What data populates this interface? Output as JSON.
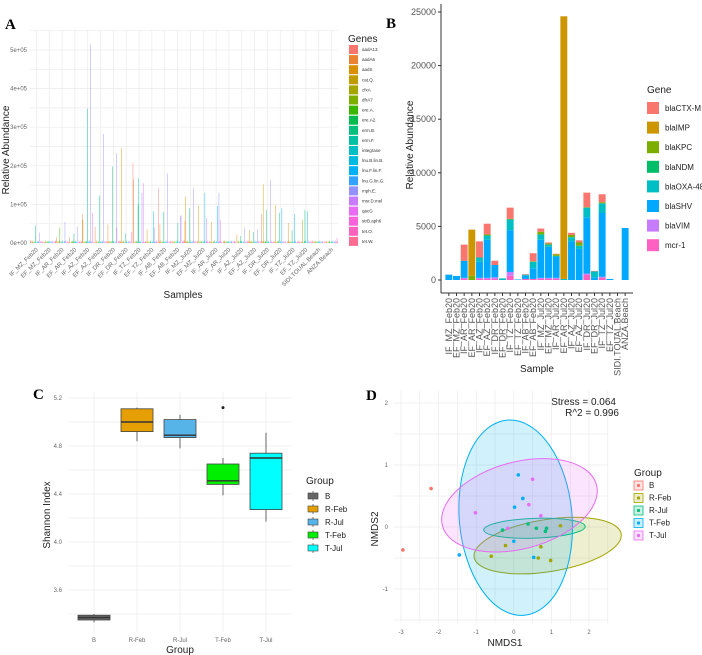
{
  "chart_data": [
    {
      "panel": "A",
      "type": "bar",
      "ylabel": "Relative Abundance",
      "xlabel": "Samples",
      "ylim": [
        0,
        520000
      ],
      "yticks": [
        "0e+00",
        "1e+05",
        "2e+05",
        "3e+05",
        "4e+05",
        "5e+05"
      ],
      "legend_title": "Genes",
      "legend_position": "right",
      "grid": true,
      "genes": [
        "aadA13",
        "aadA6",
        "aadS",
        "cat.Q.",
        "cfxA",
        "dfrA7",
        "ere.A.",
        "ere.A2.",
        "erm.B.",
        "erm.F.",
        "integrase",
        "lnu.B.lin.B.",
        "lnu.F.lin.F.",
        "lnu.G.lin.G.",
        "mph.E.",
        "msr.D.mel",
        "qacG",
        "strB.aph6",
        "tet.O.",
        "tet.W."
      ],
      "colors": [
        "#F8766D",
        "#EA8331",
        "#D89000",
        "#C09B00",
        "#A3A500",
        "#7CAE00",
        "#39B600",
        "#00BB4E",
        "#00BF7D",
        "#00C1A3",
        "#00BFC4",
        "#00BAE0",
        "#00B0F6",
        "#35A2FF",
        "#9590FF",
        "#C77CFF",
        "#E76BF3",
        "#FA62DB",
        "#FF62BC",
        "#FF6C91"
      ],
      "categories": [
        "IF_MZ_Feb20",
        "EF_MZ_Feb20",
        "IF_AR_Feb20",
        "EF_AR_Feb20",
        "IF_AZ_Feb20",
        "EF_AZ_Feb20",
        "IF_DR_Feb20",
        "EF_DR_Feb20",
        "IF_TZ_Feb20",
        "EF_TZ_Feb20",
        "IF_AB_Feb20",
        "EF_AB_Feb20",
        "IF_MZ_Jul20",
        "EF_MZ_Jul20",
        "IF_AR_Jul20",
        "EF_AR_Jul20",
        "IF_AZ_Jul20",
        "EF_AZ_Jul20",
        "IF_DR_Jul20",
        "EF_DR_Jul20",
        "IF_TZ_Jul20",
        "EF_TZ_Jul20",
        "SIDI.TOUAL.Beach",
        "ANZA.Beach"
      ],
      "peak_values_by_sample": [
        {
          "erm.B.": 45000,
          "mph.E.": 27000,
          "aadA13": 8000
        },
        {
          "lnu.F.lin.F.": 5000,
          "aadS": 3000
        },
        {
          "ere.A.": 40000,
          "mph.E.": 55000,
          "aadA6": 15000
        },
        {
          "erm.B.": 25000,
          "mph.E.": 42000,
          "aadA6": 15000
        },
        {
          "aadA6": 75000,
          "erm.F.": 348000,
          "mph.E.": 515000,
          "strB.aph6": 78000,
          "aadS": 60000
        },
        {
          "erm.B.": 123000,
          "mph.E.": 283000,
          "aadA6": 42000
        },
        {
          "erm.B.": 198000,
          "mph.E.": 233000,
          "aadA6": 48000,
          "msr.D.mel": 40000
        },
        {
          "aadS": 245000,
          "erm.B.": 25000,
          "tet.O.": 28000
        },
        {
          "aadA13": 208000,
          "aadA6": 165000,
          "erm.F.": 168000,
          "mph.E.": 130000,
          "qacG": 155000,
          "erm.B.": 100000
        },
        {
          "lnu.F.lin.F.": 82000,
          "mph.E.": 40000,
          "aadS": 35000
        },
        {
          "aadA13": 142000,
          "erm.B.": 80000,
          "mph.E.": 180000,
          "aadS": 48000
        },
        {
          "msr.D.mel": 72000,
          "mph.E.": 70000,
          "integrase": 52000
        },
        {
          "aadS": 120000,
          "erm.B.": 90000,
          "mph.E.": 143000,
          "aadA6": 57000
        },
        {
          "aadS": 97000,
          "lnu.F.lin.F.": 130000,
          "msr.D.mel": 65000
        },
        {
          "aadS": 55000,
          "lnu.F.lin.F.": 96000,
          "mph.E.": 130000,
          "qacG": 60000
        },
        {
          "aadS": 5000,
          "mph.E.": 4000
        },
        {
          "aadS": 22000,
          "mph.E.": 40000,
          "erm.B.": 18000
        },
        {
          "aadS": 33000,
          "mph.E.": 35000,
          "erm.B.": 28000
        },
        {
          "cat.Q.": 152000,
          "mph.E.": 163000,
          "erm.B.": 85000,
          "aadA13": 75000
        },
        {
          "aadS": 98000,
          "lnu.F.lin.F.": 90000,
          "erm.B.": 78000
        },
        {
          "aadS": 52000,
          "lnu.F.lin.F.": 75000,
          "erm.B.": 33000
        },
        {
          "erm.B.": 85000,
          "lnu.F.lin.F.": 82000,
          "cfxA": 60000
        },
        {
          "lnu.F.lin.F.": 1000
        },
        {
          "tet.O.": 13000
        }
      ]
    },
    {
      "panel": "B",
      "type": "bar",
      "stacked": true,
      "ylabel": "Relative Abundance",
      "xlabel": "Sample",
      "ylim": [
        0,
        25000
      ],
      "yticks": [
        "0",
        "5000",
        "10000",
        "15000",
        "20000",
        "25000"
      ],
      "legend_title": "Gene",
      "legend_position": "right",
      "categories": [
        "IF_MZ_Feb20",
        "EF_MZ_Feb20",
        "IF_AR_Feb20",
        "EF_AR_Feb20",
        "IF_AZ_Feb20",
        "EF_AZ_Feb20",
        "IF_DR_Feb20",
        "EF_DR_Feb20",
        "IF_TZ_Feb20",
        "EF_TZ_Feb20",
        "IF_AB_Feb20",
        "EF_AB_Feb20",
        "IF_MZ_Jul20",
        "EF_MZ_Jul20",
        "IF_AR_Jul20",
        "EF_AR_Jul20",
        "IF_AZ_Jul20",
        "EF_AZ_Jul20",
        "IF_DR_Jul20",
        "EF_DR_Jul20",
        "IF_TZ_Jul20",
        "EF_TZ_Jul20",
        "SIDI.TOUAL.Beach",
        "ANZA.Beach"
      ],
      "legend": [
        "blaCTX-M",
        "blaIMP",
        "blaKPC",
        "blaNDM",
        "blaOXA-48",
        "blaSHV",
        "blaVIM",
        "mcr-1"
      ],
      "series": [
        {
          "name": "mcr-1",
          "color": "#FF61C3",
          "values": [
            0,
            0,
            100,
            0,
            100,
            100,
            100,
            0,
            400,
            0,
            100,
            100,
            100,
            100,
            100,
            0,
            0,
            0,
            500,
            0,
            200,
            0,
            0,
            0
          ]
        },
        {
          "name": "blaVIM",
          "color": "#C77CFF",
          "values": [
            0,
            0,
            100,
            0,
            100,
            100,
            150,
            0,
            350,
            0,
            0,
            0,
            100,
            100,
            100,
            0,
            0,
            0,
            100,
            0,
            100,
            0,
            0,
            0
          ]
        },
        {
          "name": "blaSHV",
          "color": "#00A9FF",
          "values": [
            500,
            380,
            1600,
            0,
            1500,
            3550,
            1150,
            0,
            3900,
            50,
            300,
            1000,
            3550,
            2900,
            1950,
            0,
            3600,
            2900,
            5250,
            250,
            5950,
            100,
            0,
            4850
          ]
        },
        {
          "name": "blaOXA-48",
          "color": "#00BFC4",
          "values": [
            0,
            0,
            0,
            0,
            400,
            400,
            0,
            150,
            1000,
            0,
            100,
            600,
            500,
            200,
            100,
            100,
            400,
            300,
            900,
            550,
            900,
            0,
            0,
            0
          ]
        },
        {
          "name": "blaNDM",
          "color": "#00BE67",
          "values": [
            0,
            0,
            0,
            0,
            0,
            0,
            0,
            0,
            0,
            0,
            0,
            0,
            0,
            0,
            0,
            0,
            0,
            0,
            0,
            0,
            0,
            0,
            0,
            0
          ]
        },
        {
          "name": "blaKPC",
          "color": "#7CAE00",
          "values": [
            0,
            0,
            0,
            400,
            0,
            100,
            0,
            0,
            50,
            0,
            0,
            50,
            250,
            100,
            150,
            0,
            200,
            300,
            50,
            0,
            100,
            0,
            0,
            0
          ]
        },
        {
          "name": "blaIMP",
          "color": "#CD9600",
          "values": [
            0,
            0,
            0,
            4300,
            0,
            0,
            0,
            0,
            0,
            0,
            0,
            0,
            0,
            0,
            0,
            24500,
            0,
            0,
            0,
            0,
            0,
            0,
            0,
            0
          ]
        },
        {
          "name": "blaCTX-M",
          "color": "#F8766D",
          "values": [
            0,
            0,
            1500,
            0,
            1500,
            1000,
            400,
            0,
            1050,
            0,
            50,
            750,
            300,
            100,
            50,
            0,
            200,
            200,
            1350,
            50,
            750,
            0,
            0,
            0
          ]
        }
      ]
    },
    {
      "panel": "C",
      "type": "box",
      "ylabel": "Shannon Index",
      "xlabel": "Group",
      "ylim": [
        3.3,
        5.2
      ],
      "yticks": [
        "3.6",
        "4.0",
        "4.4",
        "4.8",
        "5.2"
      ],
      "legend_title": "Group",
      "legend_position": "right",
      "groups": [
        {
          "name": "B",
          "color": "#666666",
          "min": 3.33,
          "q1": 3.35,
          "median": 3.37,
          "q3": 3.39,
          "max": 3.4,
          "outliers": []
        },
        {
          "name": "R-Feb",
          "color": "#E69F00",
          "min": 4.84,
          "q1": 4.92,
          "median": 5.0,
          "q3": 5.11,
          "max": 5.12,
          "outliers": []
        },
        {
          "name": "R-Jul",
          "color": "#56B4E9",
          "min": 4.78,
          "q1": 4.87,
          "median": 4.89,
          "q3": 5.02,
          "max": 5.06,
          "outliers": []
        },
        {
          "name": "T-Feb",
          "color": "#00EE00",
          "min": 4.39,
          "q1": 4.48,
          "median": 4.51,
          "q3": 4.65,
          "max": 4.7,
          "outliers": [
            5.12
          ]
        },
        {
          "name": "T-Jul",
          "color": "#00FFFF",
          "min": 4.17,
          "q1": 4.27,
          "median": 4.7,
          "q3": 4.74,
          "max": 4.91,
          "outliers": []
        }
      ]
    },
    {
      "panel": "D",
      "type": "scatter",
      "xlabel": "NMDS1",
      "ylabel": "NMDS2",
      "xlim": [
        -3.2,
        2.6
      ],
      "ylim": [
        -1.6,
        2.2
      ],
      "xticks": [
        "-3",
        "-2",
        "-1",
        "0",
        "1",
        "2"
      ],
      "yticks": [
        "-1",
        "0",
        "1",
        "2"
      ],
      "annotations": [
        "Stress = 0.064",
        "R^2 = 0.996"
      ],
      "legend_title": "Group",
      "legend_position": "right",
      "groups": [
        {
          "name": "B",
          "color": "#F8766D",
          "points": [
            [
              -2.2,
              0.62
            ],
            [
              -2.95,
              -0.37
            ]
          ],
          "ellipse": null
        },
        {
          "name": "R-Feb",
          "color": "#A3A500",
          "points": [
            [
              -0.6,
              -0.47
            ],
            [
              -0.22,
              -0.3
            ],
            [
              0.72,
              -0.32
            ],
            [
              0.65,
              -0.5
            ],
            [
              0.98,
              -0.54
            ],
            [
              1.24,
              0.02
            ]
          ],
          "ellipse": {
            "cx": 0.9,
            "cy": -0.3,
            "rx": 1.98,
            "ry": 0.42,
            "angle": -9
          }
        },
        {
          "name": "R-Jul",
          "color": "#00BF7D",
          "points": [
            [
              -0.3,
              -0.05
            ],
            [
              0.38,
              0.05
            ],
            [
              0.6,
              -0.02
            ],
            [
              0.87,
              -0.02
            ],
            [
              0.84,
              -0.07
            ]
          ],
          "ellipse": {
            "cx": 0.55,
            "cy": -0.02,
            "rx": 1.35,
            "ry": 0.16,
            "angle": -2
          }
        },
        {
          "name": "T-Feb",
          "color": "#00B0F6",
          "points": [
            [
              0.12,
              0.84
            ],
            [
              0.24,
              0.46
            ],
            [
              0.02,
              0.32
            ],
            [
              0.0,
              -0.23
            ],
            [
              -1.45,
              -0.45
            ],
            [
              0.53,
              -0.49
            ]
          ],
          "ellipse": {
            "cx": 0.05,
            "cy": 0.15,
            "rx": 1.5,
            "ry": 1.58,
            "angle": -5
          }
        },
        {
          "name": "T-Jul",
          "color": "#E76BF3",
          "points": [
            [
              0.5,
              0.77
            ],
            [
              0.4,
              0.36
            ],
            [
              -1.02,
              0.23
            ],
            [
              0.72,
              0.18
            ],
            [
              -0.16,
              -0.02
            ]
          ],
          "ellipse": {
            "cx": 0.15,
            "cy": 0.35,
            "rx": 2.12,
            "ry": 0.7,
            "angle": -15
          }
        }
      ]
    }
  ]
}
